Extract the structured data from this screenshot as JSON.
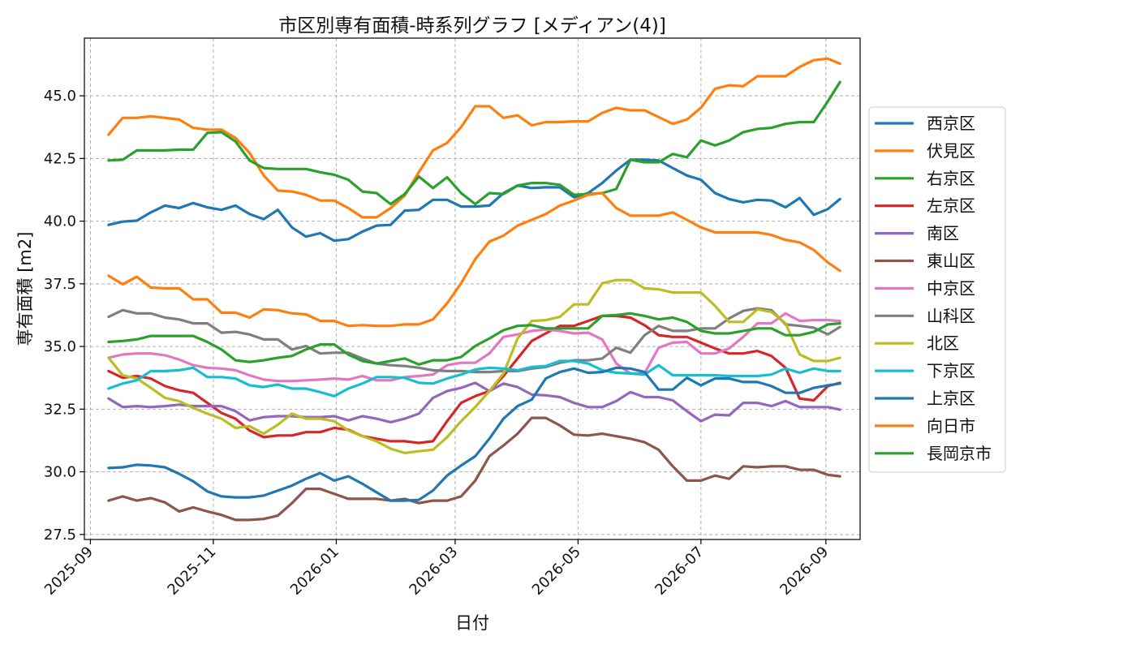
{
  "chart_data": {
    "type": "line",
    "title": "市区別専有面積-時系列グラフ [メディアン(4)]",
    "xlabel": "日付",
    "ylabel": "専有面積 [m2]",
    "xlim": [
      "2025-08-29",
      "2026-09-18"
    ],
    "ylim": [
      27.3,
      47.3
    ],
    "yticks": [
      27.5,
      30.0,
      32.5,
      35.0,
      37.5,
      40.0,
      42.5,
      45.0
    ],
    "xticks": [
      "2025-09-01",
      "2025-11-01",
      "2026-01-01",
      "2026-03-01",
      "2026-05-01",
      "2026-07-01",
      "2026-09-01"
    ],
    "xtick_labels": [
      "2025-09",
      "2025-11",
      "2026-01",
      "2026-03",
      "2026-05",
      "2026-07",
      "2026-09"
    ],
    "grid": true,
    "legend_position": "right",
    "x": [
      "2025-09-10",
      "2025-09-17",
      "2025-09-24",
      "2025-10-01",
      "2025-10-08",
      "2025-10-15",
      "2025-10-22",
      "2025-10-29",
      "2025-11-05",
      "2025-11-12",
      "2025-11-19",
      "2025-11-26",
      "2025-12-03",
      "2025-12-10",
      "2025-12-17",
      "2025-12-24",
      "2025-12-31",
      "2026-01-07",
      "2026-01-14",
      "2026-01-21",
      "2026-01-28",
      "2026-02-04",
      "2026-02-11",
      "2026-02-18",
      "2026-02-25",
      "2026-03-04",
      "2026-03-11",
      "2026-03-18",
      "2026-03-25",
      "2026-04-01",
      "2026-04-08",
      "2026-04-15",
      "2026-04-22",
      "2026-04-29",
      "2026-05-06",
      "2026-05-13",
      "2026-05-20",
      "2026-05-27",
      "2026-06-03",
      "2026-06-10",
      "2026-06-17",
      "2026-06-24",
      "2026-07-01",
      "2026-07-08",
      "2026-07-15",
      "2026-07-22",
      "2026-07-29",
      "2026-08-05",
      "2026-08-12",
      "2026-08-19",
      "2026-08-26",
      "2026-09-02",
      "2026-09-08"
    ],
    "series": [
      {
        "name": "西京区",
        "color": "#1f77b4",
        "values": [
          39.85,
          39.98,
          40.02,
          40.35,
          40.62,
          40.52,
          40.72,
          40.55,
          40.45,
          40.62,
          40.28,
          40.08,
          40.45,
          39.75,
          39.38,
          39.52,
          39.22,
          39.28,
          39.58,
          39.82,
          39.85,
          40.42,
          40.45,
          40.85,
          40.85,
          40.58,
          40.58,
          40.62,
          41.12,
          41.42,
          41.32,
          41.35,
          41.35,
          40.95,
          41.12,
          41.52,
          42.02,
          42.45,
          42.45,
          42.42,
          42.12,
          41.82,
          41.65,
          41.12,
          40.88,
          40.75,
          40.85,
          40.82,
          40.55,
          40.92,
          40.25,
          40.48,
          40.88
        ]
      },
      {
        "name": "伏見区",
        "color": "#ff7f0e",
        "values": [
          43.45,
          44.12,
          44.12,
          44.18,
          44.12,
          44.05,
          43.72,
          43.65,
          43.65,
          43.32,
          42.72,
          41.82,
          41.22,
          41.18,
          41.05,
          40.82,
          40.82,
          40.52,
          40.15,
          40.15,
          40.52,
          41.02,
          41.95,
          42.82,
          43.12,
          43.75,
          44.58,
          44.58,
          44.12,
          44.22,
          43.82,
          43.95,
          43.95,
          43.98,
          43.98,
          44.32,
          44.52,
          44.42,
          44.42,
          44.15,
          43.88,
          44.05,
          44.52,
          45.28,
          45.42,
          45.38,
          45.78,
          45.78,
          45.78,
          46.15,
          46.42,
          46.48,
          46.28
        ]
      },
      {
        "name": "右京区",
        "color": "#2ca02c",
        "values": [
          42.42,
          42.45,
          42.82,
          42.82,
          42.82,
          42.85,
          42.85,
          43.52,
          43.55,
          43.18,
          42.42,
          42.12,
          42.08,
          42.08,
          42.08,
          41.95,
          41.85,
          41.65,
          41.18,
          41.12,
          40.68,
          41.08,
          41.78,
          41.32,
          41.75,
          41.12,
          40.68,
          41.12,
          41.08,
          41.42,
          41.52,
          41.52,
          41.45,
          41.05,
          41.08,
          41.12,
          41.28,
          42.45,
          42.35,
          42.35,
          42.68,
          42.55,
          43.22,
          43.02,
          43.22,
          43.55,
          43.68,
          43.72,
          43.88,
          43.95,
          43.95,
          44.78,
          45.55
        ]
      },
      {
        "name": "左京区",
        "color": "#d62728",
        "values": [
          34.02,
          33.75,
          33.82,
          33.72,
          33.42,
          33.25,
          33.15,
          32.75,
          32.35,
          32.12,
          31.65,
          31.38,
          31.45,
          31.45,
          31.58,
          31.58,
          31.75,
          31.68,
          31.42,
          31.32,
          31.22,
          31.22,
          31.15,
          31.22,
          32.02,
          32.75,
          33.02,
          33.22,
          33.82,
          34.52,
          35.22,
          35.52,
          35.82,
          35.82,
          36.02,
          36.22,
          36.22,
          36.15,
          35.85,
          35.45,
          35.38,
          35.38,
          35.15,
          34.92,
          34.72,
          34.72,
          34.82,
          34.62,
          34.15,
          32.92,
          32.85,
          33.42,
          33.55
        ]
      },
      {
        "name": "南区",
        "color": "#9467bd",
        "values": [
          32.92,
          32.58,
          32.62,
          32.58,
          32.62,
          32.68,
          32.62,
          32.62,
          32.62,
          32.42,
          32.05,
          32.18,
          32.22,
          32.22,
          32.18,
          32.18,
          32.22,
          32.05,
          32.22,
          32.12,
          31.98,
          32.12,
          32.32,
          32.95,
          33.22,
          33.35,
          33.55,
          33.22,
          33.52,
          33.38,
          33.08,
          33.05,
          32.98,
          32.75,
          32.58,
          32.58,
          32.82,
          33.18,
          32.98,
          32.98,
          32.85,
          32.42,
          32.02,
          32.28,
          32.25,
          32.75,
          32.75,
          32.62,
          32.82,
          32.58,
          32.58,
          32.58,
          32.48
        ]
      },
      {
        "name": "東山区",
        "color": "#8c564b",
        "values": [
          28.85,
          29.02,
          28.85,
          28.95,
          28.78,
          28.42,
          28.58,
          28.42,
          28.28,
          28.08,
          28.08,
          28.12,
          28.25,
          28.75,
          29.32,
          29.32,
          29.12,
          28.92,
          28.92,
          28.92,
          28.85,
          28.92,
          28.75,
          28.85,
          28.85,
          29.02,
          29.65,
          30.62,
          31.05,
          31.52,
          32.15,
          32.15,
          31.85,
          31.48,
          31.45,
          31.52,
          31.42,
          31.32,
          31.18,
          30.88,
          30.22,
          29.65,
          29.65,
          29.85,
          29.72,
          30.22,
          30.18,
          30.22,
          30.22,
          30.08,
          30.08,
          29.88,
          29.82
        ]
      },
      {
        "name": "中京区",
        "color": "#e377c2",
        "values": [
          34.55,
          34.68,
          34.72,
          34.72,
          34.65,
          34.48,
          34.25,
          34.15,
          34.12,
          34.05,
          33.85,
          33.68,
          33.62,
          33.62,
          33.65,
          33.68,
          33.72,
          33.68,
          33.82,
          33.65,
          33.65,
          33.78,
          33.82,
          33.88,
          34.25,
          34.35,
          34.35,
          34.72,
          35.38,
          35.48,
          35.62,
          35.68,
          35.62,
          35.52,
          35.55,
          35.28,
          34.32,
          33.92,
          33.92,
          34.95,
          35.15,
          35.18,
          34.72,
          34.72,
          34.92,
          35.38,
          35.92,
          35.92,
          36.32,
          36.02,
          36.05,
          36.05,
          36.02
        ]
      },
      {
        "name": "山科区",
        "color": "#7f7f7f",
        "values": [
          36.18,
          36.45,
          36.32,
          36.32,
          36.15,
          36.08,
          35.92,
          35.92,
          35.55,
          35.58,
          35.48,
          35.28,
          35.28,
          34.88,
          35.02,
          34.72,
          34.75,
          34.75,
          34.52,
          34.32,
          34.25,
          34.22,
          34.15,
          34.05,
          34.02,
          34.02,
          33.98,
          33.98,
          34.02,
          34.02,
          34.12,
          34.18,
          34.35,
          34.45,
          34.45,
          34.52,
          34.95,
          34.75,
          35.45,
          35.82,
          35.62,
          35.62,
          35.72,
          35.72,
          36.12,
          36.42,
          36.52,
          36.45,
          35.88,
          35.82,
          35.75,
          35.48,
          35.78
        ]
      },
      {
        "name": "北区",
        "color": "#bcbd22",
        "values": [
          34.55,
          33.85,
          33.72,
          33.35,
          32.95,
          32.82,
          32.55,
          32.32,
          32.12,
          31.75,
          31.82,
          31.52,
          31.88,
          32.32,
          32.12,
          32.12,
          32.02,
          31.65,
          31.42,
          31.22,
          30.92,
          30.75,
          30.82,
          30.88,
          31.38,
          32.02,
          32.58,
          33.22,
          33.92,
          35.32,
          36.02,
          36.05,
          36.18,
          36.68,
          36.68,
          37.52,
          37.65,
          37.65,
          37.32,
          37.28,
          37.15,
          37.15,
          37.15,
          36.62,
          35.98,
          35.98,
          36.48,
          36.38,
          35.92,
          34.68,
          34.42,
          34.42,
          34.55
        ]
      },
      {
        "name": "下京区",
        "color": "#17becf",
        "values": [
          33.32,
          33.52,
          33.65,
          34.02,
          34.02,
          34.05,
          34.15,
          33.78,
          33.78,
          33.72,
          33.45,
          33.38,
          33.48,
          33.32,
          33.32,
          33.18,
          33.02,
          33.32,
          33.52,
          33.78,
          33.78,
          33.75,
          33.55,
          33.52,
          33.72,
          33.88,
          34.08,
          34.15,
          34.12,
          34.05,
          34.18,
          34.22,
          34.42,
          34.42,
          34.32,
          34.05,
          33.95,
          33.92,
          33.88,
          34.25,
          33.85,
          33.85,
          33.85,
          33.85,
          33.82,
          33.82,
          33.82,
          33.88,
          34.12,
          33.95,
          34.12,
          34.02,
          34.02
        ]
      },
      {
        "name": "上京区",
        "color": "#1f77b4",
        "values": [
          30.15,
          30.18,
          30.28,
          30.25,
          30.18,
          29.92,
          29.62,
          29.22,
          29.02,
          28.98,
          28.98,
          29.05,
          29.25,
          29.45,
          29.72,
          29.95,
          29.65,
          29.82,
          29.52,
          29.18,
          28.85,
          28.85,
          28.88,
          29.25,
          29.85,
          30.25,
          30.62,
          31.32,
          32.12,
          32.62,
          32.88,
          33.72,
          33.98,
          34.12,
          33.95,
          33.98,
          34.15,
          34.12,
          33.98,
          33.28,
          33.28,
          33.75,
          33.45,
          33.72,
          33.72,
          33.58,
          33.58,
          33.42,
          33.15,
          33.15,
          33.35,
          33.45,
          33.52
        ]
      },
      {
        "name": "向日市",
        "color": "#ff7f0e",
        "values": [
          37.82,
          37.48,
          37.78,
          37.35,
          37.32,
          37.32,
          36.88,
          36.88,
          36.35,
          36.35,
          36.15,
          36.48,
          36.45,
          36.32,
          36.28,
          36.02,
          36.02,
          35.82,
          35.85,
          35.82,
          35.82,
          35.88,
          35.88,
          36.08,
          36.72,
          37.52,
          38.48,
          39.18,
          39.42,
          39.82,
          40.05,
          40.28,
          40.62,
          40.82,
          41.05,
          41.12,
          40.52,
          40.22,
          40.22,
          40.22,
          40.35,
          40.05,
          39.75,
          39.55,
          39.55,
          39.55,
          39.55,
          39.45,
          39.25,
          39.15,
          38.85,
          38.35,
          38.02
        ]
      },
      {
        "name": "長岡京市",
        "color": "#2ca02c",
        "values": [
          35.18,
          35.22,
          35.28,
          35.42,
          35.42,
          35.42,
          35.42,
          35.18,
          34.88,
          34.45,
          34.38,
          34.45,
          34.55,
          34.62,
          34.88,
          35.08,
          35.08,
          34.68,
          34.42,
          34.32,
          34.42,
          34.52,
          34.28,
          34.45,
          34.45,
          34.58,
          35.02,
          35.32,
          35.65,
          35.82,
          35.85,
          35.72,
          35.72,
          35.72,
          35.72,
          36.22,
          36.25,
          36.32,
          36.22,
          36.08,
          36.15,
          35.98,
          35.62,
          35.52,
          35.52,
          35.62,
          35.72,
          35.72,
          35.45,
          35.45,
          35.58,
          35.88,
          35.92
        ]
      }
    ]
  }
}
